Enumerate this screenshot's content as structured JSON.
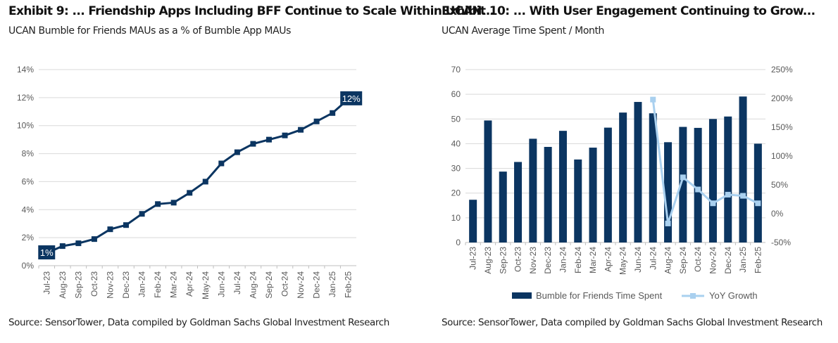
{
  "left": {
    "title": "Exhibit 9: ... Friendship Apps Including BFF Continue to Scale Within UCAN...",
    "subtitle": "UCAN Bumble for Friends MAUs as a % of Bumble App MAUs",
    "source": "Source: SensorTower, Data compiled by Goldman Sachs Global Investment Research"
  },
  "right": {
    "title": "Exhibit 10: ... With User Engagement Continuing to Grow...",
    "subtitle": "UCAN Average Time Spent / Month",
    "source": "Source: SensorTower, Data compiled by Goldman Sachs Global Investment Research"
  },
  "chart_data": [
    {
      "type": "line",
      "categories": [
        "Jul-23",
        "Aug-23",
        "Sep-23",
        "Oct-23",
        "Nov-23",
        "Dec-23",
        "Jan-24",
        "Feb-24",
        "Mar-24",
        "Apr-24",
        "May-24",
        "Jun-24",
        "Jul-24",
        "Aug-24",
        "Sep-24",
        "Oct-24",
        "Nov-24",
        "Dec-24",
        "Jan-25",
        "Feb-25"
      ],
      "series": [
        {
          "values": [
            0.9,
            1.4,
            1.6,
            1.9,
            2.6,
            2.9,
            3.7,
            4.4,
            4.5,
            5.2,
            6.0,
            7.3,
            8.1,
            8.7,
            9.0,
            9.3,
            9.7,
            10.3,
            10.9,
            11.9
          ],
          "color": "#0b3561"
        }
      ],
      "ylim": [
        0,
        14
      ],
      "yticks": [
        "0%",
        "2%",
        "4%",
        "6%",
        "8%",
        "10%",
        "12%",
        "14%"
      ],
      "data_labels": [
        {
          "index": 0,
          "text": "1%"
        },
        {
          "index": 19,
          "text": "12%"
        }
      ],
      "grid": true
    },
    {
      "type": "bar+line",
      "categories": [
        "Jul-23",
        "Aug-23",
        "Sep-23",
        "Oct-23",
        "Nov-23",
        "Dec-23",
        "Jan-24",
        "Feb-24",
        "Mar-24",
        "Apr-24",
        "May-24",
        "Jun-24",
        "Jul-24",
        "Aug-24",
        "Sep-24",
        "Oct-24",
        "Nov-24",
        "Dec-24",
        "Jan-25",
        "Feb-25"
      ],
      "series": [
        {
          "name": "Bumble for Friends Time Spent",
          "type": "bar",
          "axis": "left",
          "color": "#0b3561",
          "values": [
            17.3,
            49.4,
            28.7,
            32.6,
            42.0,
            38.7,
            45.2,
            33.6,
            38.4,
            46.5,
            52.6,
            56.9,
            52.3,
            40.6,
            46.8,
            46.4,
            50.0,
            51.0,
            59.1,
            40.0
          ]
        },
        {
          "name": "YoY Growth",
          "type": "line",
          "axis": "right",
          "color": "#a9d0ef",
          "values": [
            null,
            null,
            null,
            null,
            null,
            null,
            null,
            null,
            null,
            null,
            null,
            null,
            198,
            -17,
            63,
            42,
            18,
            33,
            31,
            18
          ]
        }
      ],
      "ylim_left": [
        0,
        70
      ],
      "yticks_left": [
        "0",
        "10",
        "20",
        "30",
        "40",
        "50",
        "60",
        "70"
      ],
      "ylim_right": [
        -50,
        250
      ],
      "yticks_right": [
        "-50%",
        "0%",
        "50%",
        "100%",
        "150%",
        "200%",
        "250%"
      ],
      "legend": "bottom",
      "grid": true
    }
  ]
}
